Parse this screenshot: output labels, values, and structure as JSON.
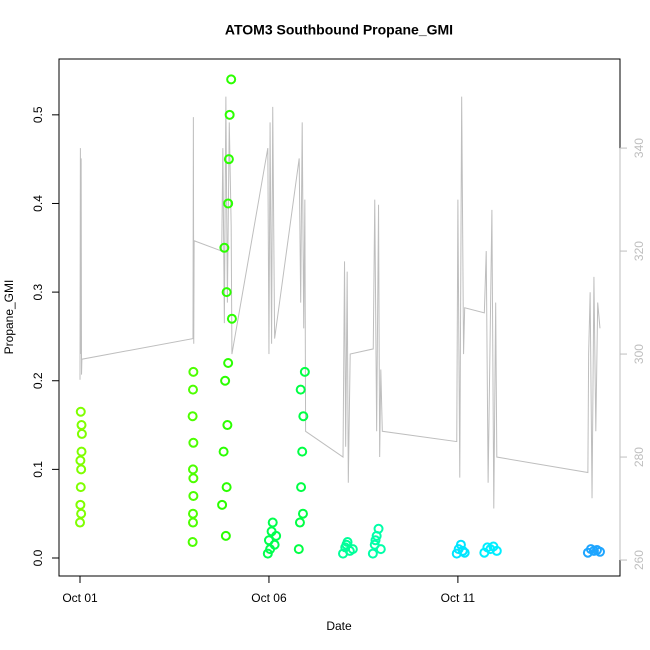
{
  "chart_data": {
    "type": "scatter",
    "title": "ATOM3 Southbound Propane_GMI",
    "xlabel": "Date",
    "ylabel": "Propane_GMI",
    "xlim": [
      -0.556,
      14.29
    ],
    "xticks": [
      {
        "value": 0,
        "label": "Oct 01"
      },
      {
        "value": 5,
        "label": "Oct 06"
      },
      {
        "value": 10,
        "label": "Oct 11"
      }
    ],
    "ylim": [
      -0.0203,
      0.563
    ],
    "yticks": [
      {
        "value": 0,
        "label": "0.0"
      },
      0.1,
      0.2,
      0.3,
      0.4,
      0.5
    ],
    "y2lim": [
      256.9,
      357.3
    ],
    "y2ticks": [
      260,
      280,
      300,
      320,
      340
    ],
    "y2color": "#bebebe",
    "series": [
      {
        "color": "#7fff00",
        "x": [
          0,
          0.01,
          0.02,
          0.03,
          0.04,
          0.05,
          0.02,
          0.04,
          0.01,
          0.03
        ],
        "values": [
          0.04,
          0.06,
          0.08,
          0.1,
          0.12,
          0.14,
          0.165,
          0.15,
          0.11,
          0.05
        ]
      },
      {
        "color": "#4dff00",
        "x": [
          2.98,
          2.99,
          3.0,
          2.99,
          3.0,
          2.98,
          2.99,
          3.0,
          2.99,
          3.0
        ],
        "values": [
          0.018,
          0.04,
          0.07,
          0.1,
          0.13,
          0.16,
          0.19,
          0.21,
          0.05,
          0.09
        ]
      },
      {
        "color": "#2bff00",
        "x": [
          3.76,
          3.8,
          3.84,
          3.88,
          3.92,
          3.96,
          4.0,
          4.02,
          3.86,
          3.9,
          3.94,
          3.82,
          3.88,
          3.92
        ],
        "values": [
          0.06,
          0.12,
          0.2,
          0.3,
          0.4,
          0.5,
          0.54,
          0.27,
          0.025,
          0.15,
          0.45,
          0.35,
          0.08,
          0.22
        ]
      },
      {
        "color": "#00ff4d",
        "x": [
          4.97,
          5.0,
          5.03,
          5.07,
          5.1,
          5.15,
          5.19
        ],
        "values": [
          0.005,
          0.02,
          0.01,
          0.03,
          0.04,
          0.015,
          0.025
        ]
      },
      {
        "color": "#00ff44",
        "x": [
          5.79,
          5.82,
          5.85,
          5.88,
          5.91,
          5.95,
          5.84,
          5.9
        ],
        "values": [
          0.01,
          0.04,
          0.08,
          0.12,
          0.16,
          0.21,
          0.19,
          0.05
        ]
      },
      {
        "color": "#00ff99",
        "x": [
          6.96,
          7.02,
          7.08,
          7.14,
          7.22,
          7.05
        ],
        "values": [
          0.005,
          0.012,
          0.018,
          0.008,
          0.01,
          0.015
        ]
      },
      {
        "color": "#00ffa8",
        "x": [
          7.75,
          7.8,
          7.85,
          7.9,
          7.96,
          7.82
        ],
        "values": [
          0.005,
          0.015,
          0.025,
          0.033,
          0.01,
          0.02
        ]
      },
      {
        "color": "#00e5ff",
        "x": [
          9.97,
          10.02,
          10.08,
          10.13,
          10.18
        ],
        "values": [
          0.005,
          0.01,
          0.015,
          0.008,
          0.006
        ]
      },
      {
        "color": "#00eeff",
        "x": [
          10.7,
          10.78,
          10.86,
          10.94,
          11.03
        ],
        "values": [
          0.006,
          0.012,
          0.01,
          0.013,
          0.008
        ]
      },
      {
        "color": "#1ea5ff",
        "x": [
          13.44,
          13.52,
          13.6,
          13.68,
          13.76
        ],
        "values": [
          0.006,
          0.01,
          0.008,
          0.009,
          0.007
        ]
      },
      {
        "type": "line",
        "axis": "y2",
        "color": "#bebebe",
        "x": [
          0,
          0.01,
          0.02,
          0.03,
          0.04,
          0.05,
          2.99,
          3.0,
          3.01,
          3.02,
          3.75,
          3.78,
          3.82,
          3.86,
          3.9,
          3.95,
          4.0,
          4.02,
          4.97,
          5.0,
          5.03,
          5.07,
          5.1,
          5.15,
          5.8,
          5.84,
          5.88,
          5.92,
          5.95,
          5.97,
          6.96,
          7.0,
          7.03,
          7.07,
          7.1,
          7.15,
          7.76,
          7.8,
          7.85,
          7.9,
          7.93,
          7.96,
          8.0,
          9.97,
          10.0,
          10.05,
          10.1,
          10.15,
          10.18,
          10.7,
          10.75,
          10.8,
          10.9,
          10.95,
          11.0,
          11.03,
          13.44,
          13.46,
          13.5,
          13.55,
          13.6,
          13.65,
          13.7,
          13.76
        ],
        "values": [
          295,
          340,
          300,
          338,
          296,
          299,
          303,
          346,
          302,
          322,
          320,
          340,
          306,
          350,
          310,
          345,
          325,
          300,
          340,
          300,
          345,
          302,
          348,
          303,
          338,
          310,
          345,
          305,
          330,
          285,
          280,
          318,
          282,
          316,
          275,
          300,
          301,
          330,
          285,
          329,
          280,
          297,
          285,
          283,
          330,
          276,
          350,
          300,
          309,
          308,
          320,
          275,
          328,
          270,
          310,
          280,
          277,
          300,
          312,
          272,
          315,
          285,
          310,
          305
        ]
      }
    ]
  }
}
